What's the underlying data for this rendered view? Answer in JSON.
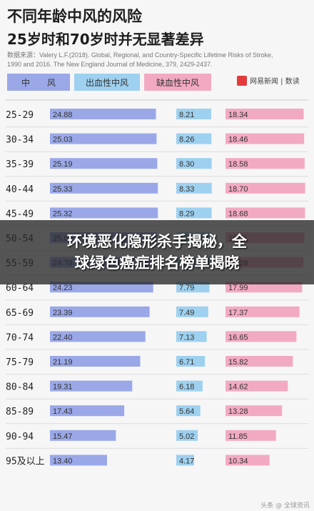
{
  "chart_data": {
    "type": "bar",
    "title": [
      "不同年龄中风的风险",
      "25岁时和70岁时并无显著差异"
    ],
    "source": [
      "数据来源：Valery L.F.(2018). Global, Regional, and Country-Specific Lifetime Risks of Stroke,",
      "1990 and 2016. The New England Journal of Medicine, 379, 2429-2437."
    ],
    "headers": [
      "中　　风",
      "出血性中风",
      "缺血性中风"
    ],
    "categories": [
      "25-29",
      "30-34",
      "35-39",
      "40-44",
      "45-49",
      "50-54",
      "55-59",
      "60-64",
      "65-69",
      "70-74",
      "75-79",
      "80-84",
      "85-89",
      "90-94",
      "95及以上"
    ],
    "series": [
      {
        "name": "中　　风",
        "color": "#9aa8e8",
        "values": [
          24.88,
          25.03,
          25.19,
          25.33,
          25.32,
          25.08,
          24.79,
          24.23,
          23.39,
          22.4,
          21.19,
          19.31,
          17.43,
          15.47,
          13.4
        ]
      },
      {
        "name": "出血性中风",
        "color": "#9ed0ef",
        "values": [
          8.21,
          8.26,
          8.3,
          8.33,
          8.29,
          8.2,
          8.05,
          7.79,
          7.49,
          7.13,
          6.71,
          6.18,
          5.64,
          5.02,
          4.17
        ]
      },
      {
        "name": "缺血性中风",
        "color": "#f2aac2",
        "values": [
          18.34,
          18.46,
          18.58,
          18.7,
          18.68,
          18.51,
          18.28,
          17.99,
          17.37,
          16.65,
          15.82,
          14.62,
          13.28,
          11.85,
          10.34
        ]
      }
    ],
    "grid": false
  },
  "logo": {
    "label": "网易新闻 | 数读",
    "color": "#e23b3b"
  },
  "banner": {
    "line1": "环境恶化隐形杀手揭秘，全",
    "line2": "球绿色癌症排名榜单揭晓"
  },
  "watermark": "头条 @ 全球资讯"
}
